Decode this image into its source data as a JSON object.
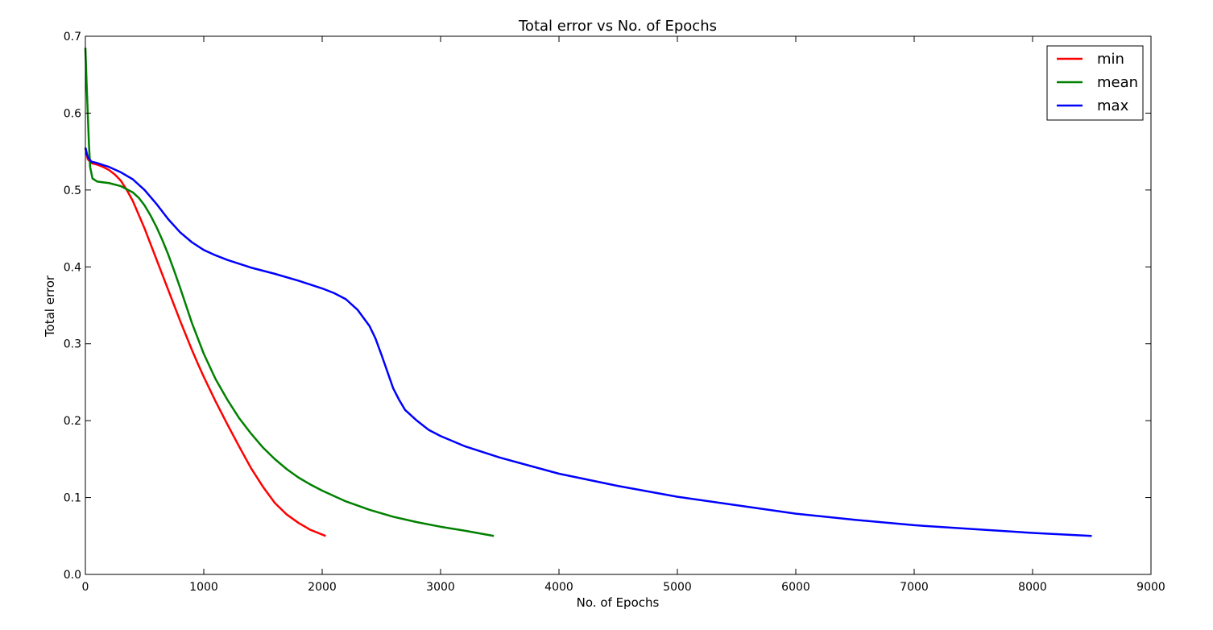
{
  "chart_data": {
    "type": "line",
    "title": "Total error vs No. of Epochs",
    "xlabel": "No. of Epochs",
    "ylabel": "Total error",
    "xlim": [
      0,
      9000
    ],
    "ylim": [
      0.0,
      0.7
    ],
    "xticks": [
      0,
      1000,
      2000,
      3000,
      4000,
      5000,
      6000,
      7000,
      8000,
      9000
    ],
    "xtick_labels": [
      "0",
      "1000",
      "2000",
      "3000",
      "4000",
      "5000",
      "6000",
      "7000",
      "8000",
      "9000"
    ],
    "yticks": [
      0.0,
      0.1,
      0.2,
      0.3,
      0.4,
      0.5,
      0.6,
      0.7
    ],
    "ytick_labels": [
      "0.0",
      "0.1",
      "0.2",
      "0.3",
      "0.4",
      "0.5",
      "0.6",
      "0.7"
    ],
    "grid": false,
    "legend_position": "top-right",
    "series": [
      {
        "name": "min",
        "color": "#ff0000",
        "points": [
          [
            0,
            0.555
          ],
          [
            20,
            0.54
          ],
          [
            50,
            0.535
          ],
          [
            100,
            0.533
          ],
          [
            150,
            0.53
          ],
          [
            200,
            0.526
          ],
          [
            250,
            0.52
          ],
          [
            300,
            0.512
          ],
          [
            350,
            0.5
          ],
          [
            400,
            0.486
          ],
          [
            450,
            0.468
          ],
          [
            500,
            0.45
          ],
          [
            550,
            0.43
          ],
          [
            600,
            0.41
          ],
          [
            650,
            0.39
          ],
          [
            700,
            0.37
          ],
          [
            750,
            0.35
          ],
          [
            800,
            0.33
          ],
          [
            850,
            0.311
          ],
          [
            900,
            0.292
          ],
          [
            950,
            0.274
          ],
          [
            1000,
            0.257
          ],
          [
            1100,
            0.225
          ],
          [
            1200,
            0.195
          ],
          [
            1300,
            0.166
          ],
          [
            1400,
            0.138
          ],
          [
            1500,
            0.114
          ],
          [
            1600,
            0.093
          ],
          [
            1700,
            0.078
          ],
          [
            1800,
            0.067
          ],
          [
            1900,
            0.058
          ],
          [
            2030,
            0.05
          ]
        ]
      },
      {
        "name": "mean",
        "color": "#008000",
        "points": [
          [
            0,
            0.685
          ],
          [
            10,
            0.64
          ],
          [
            20,
            0.6
          ],
          [
            30,
            0.56
          ],
          [
            40,
            0.53
          ],
          [
            60,
            0.515
          ],
          [
            100,
            0.511
          ],
          [
            200,
            0.509
          ],
          [
            300,
            0.505
          ],
          [
            400,
            0.497
          ],
          [
            450,
            0.49
          ],
          [
            500,
            0.48
          ],
          [
            550,
            0.467
          ],
          [
            600,
            0.452
          ],
          [
            650,
            0.435
          ],
          [
            700,
            0.416
          ],
          [
            750,
            0.395
          ],
          [
            800,
            0.373
          ],
          [
            850,
            0.35
          ],
          [
            900,
            0.327
          ],
          [
            1000,
            0.287
          ],
          [
            1100,
            0.254
          ],
          [
            1200,
            0.227
          ],
          [
            1300,
            0.203
          ],
          [
            1400,
            0.183
          ],
          [
            1500,
            0.165
          ],
          [
            1600,
            0.15
          ],
          [
            1700,
            0.137
          ],
          [
            1800,
            0.126
          ],
          [
            1900,
            0.117
          ],
          [
            2000,
            0.109
          ],
          [
            2200,
            0.095
          ],
          [
            2400,
            0.084
          ],
          [
            2600,
            0.075
          ],
          [
            2800,
            0.068
          ],
          [
            3000,
            0.062
          ],
          [
            3200,
            0.057
          ],
          [
            3450,
            0.05
          ]
        ]
      },
      {
        "name": "max",
        "color": "#0000ff",
        "points": [
          [
            0,
            0.555
          ],
          [
            20,
            0.543
          ],
          [
            50,
            0.537
          ],
          [
            100,
            0.535
          ],
          [
            200,
            0.53
          ],
          [
            300,
            0.523
          ],
          [
            400,
            0.514
          ],
          [
            500,
            0.5
          ],
          [
            600,
            0.482
          ],
          [
            700,
            0.462
          ],
          [
            800,
            0.445
          ],
          [
            900,
            0.432
          ],
          [
            1000,
            0.422
          ],
          [
            1100,
            0.415
          ],
          [
            1200,
            0.409
          ],
          [
            1400,
            0.399
          ],
          [
            1600,
            0.391
          ],
          [
            1800,
            0.382
          ],
          [
            2000,
            0.372
          ],
          [
            2100,
            0.366
          ],
          [
            2200,
            0.358
          ],
          [
            2300,
            0.344
          ],
          [
            2400,
            0.323
          ],
          [
            2450,
            0.307
          ],
          [
            2500,
            0.286
          ],
          [
            2550,
            0.264
          ],
          [
            2600,
            0.242
          ],
          [
            2650,
            0.227
          ],
          [
            2700,
            0.214
          ],
          [
            2800,
            0.2
          ],
          [
            2900,
            0.188
          ],
          [
            3000,
            0.18
          ],
          [
            3200,
            0.167
          ],
          [
            3500,
            0.152
          ],
          [
            4000,
            0.131
          ],
          [
            4500,
            0.115
          ],
          [
            5000,
            0.101
          ],
          [
            5500,
            0.09
          ],
          [
            6000,
            0.079
          ],
          [
            6500,
            0.071
          ],
          [
            7000,
            0.064
          ],
          [
            7500,
            0.059
          ],
          [
            8000,
            0.054
          ],
          [
            8500,
            0.05
          ]
        ]
      }
    ]
  }
}
